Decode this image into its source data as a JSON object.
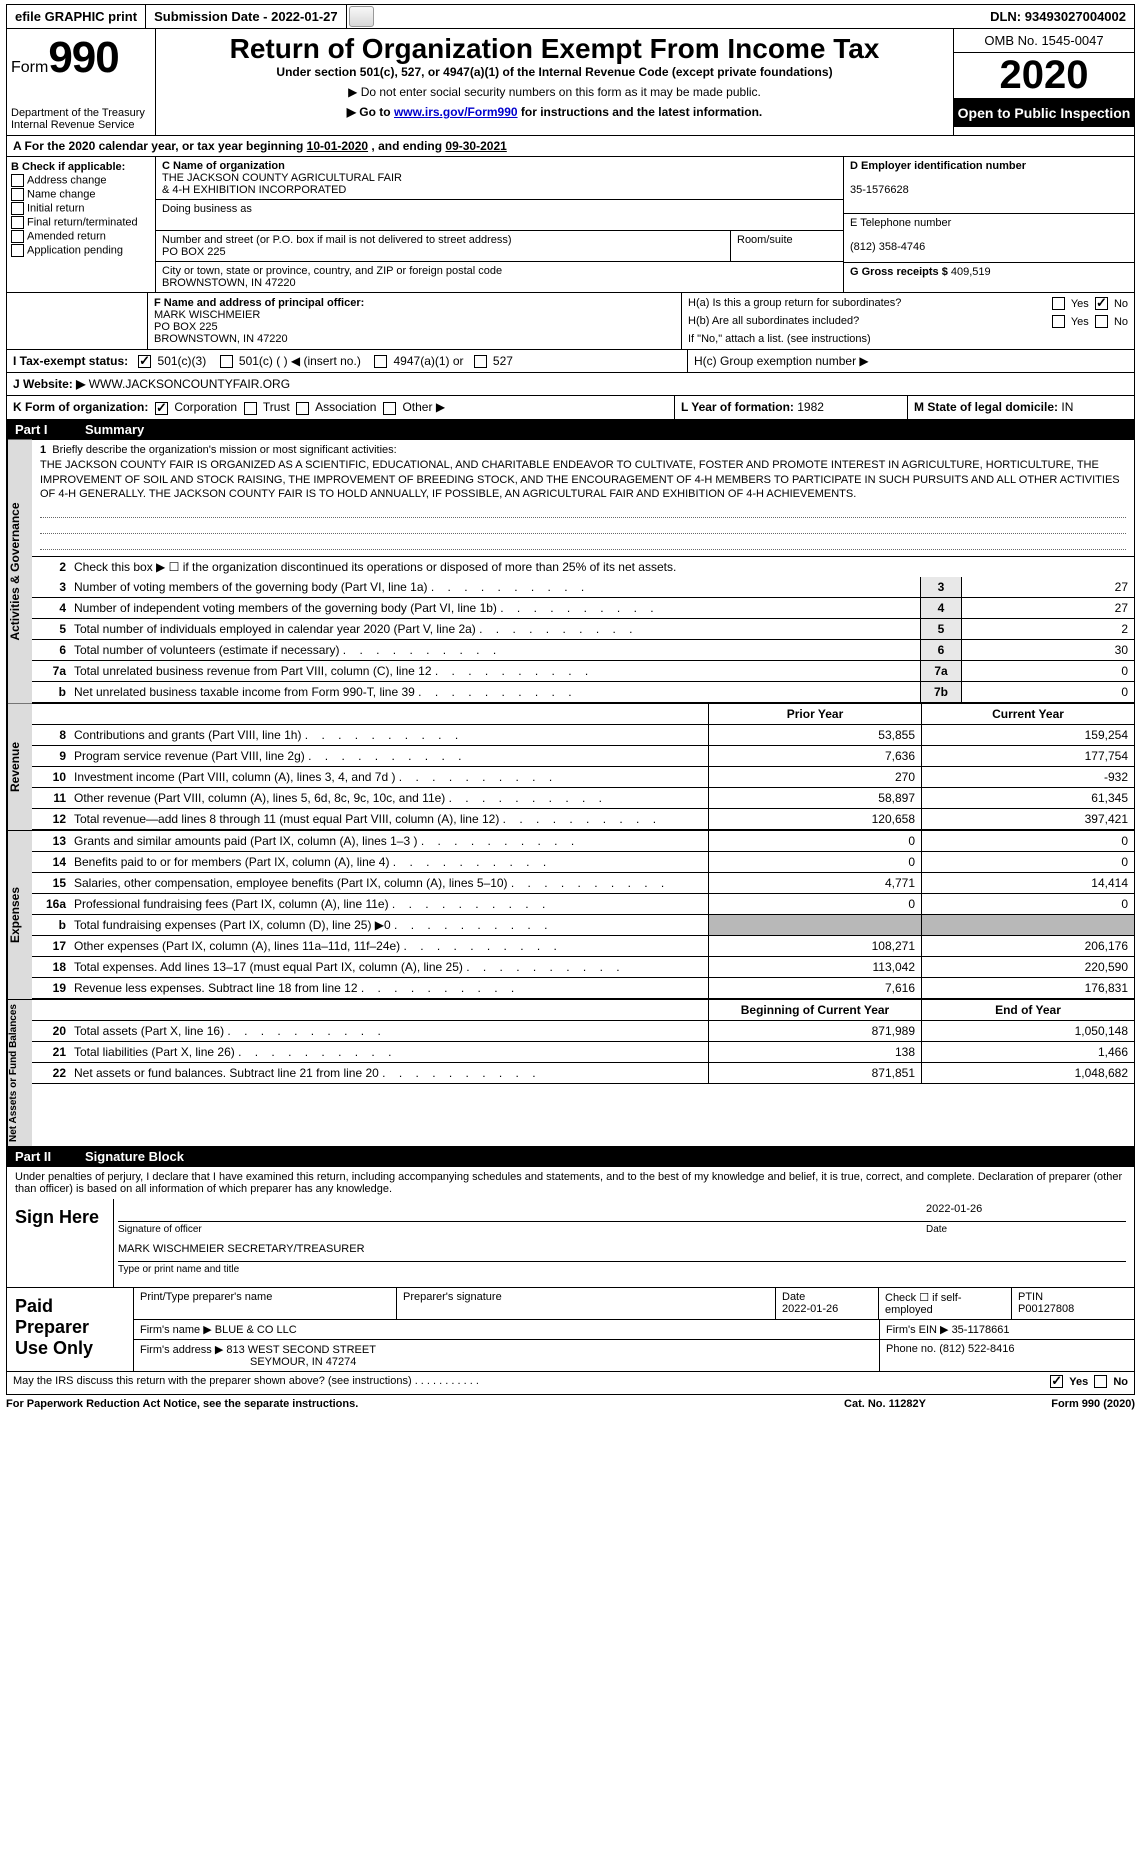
{
  "topbar": {
    "efile": "efile GRAPHIC print",
    "submission_label": "Submission Date - ",
    "submission_date": "2022-01-27",
    "dln_label": "DLN: ",
    "dln": "93493027004002"
  },
  "header": {
    "form_label": "Form",
    "form_no": "990",
    "dept": "Department of the Treasury\nInternal Revenue Service",
    "title": "Return of Organization Exempt From Income Tax",
    "subtitle": "Under section 501(c), 527, or 4947(a)(1) of the Internal Revenue Code (except private foundations)",
    "note1": "▶ Do not enter social security numbers on this form as it may be made public.",
    "note2_pre": "▶ Go to ",
    "note2_link": "www.irs.gov/Form990",
    "note2_post": " for instructions and the latest information.",
    "omb": "OMB No. 1545-0047",
    "year": "2020",
    "inspection": "Open to Public Inspection"
  },
  "sectionA": {
    "text_pre": "A For the 2020 calendar year, or tax year beginning ",
    "begin": "10-01-2020",
    "mid": " , and ending ",
    "end": "09-30-2021"
  },
  "colB": {
    "label": "B Check if applicable:",
    "items": [
      "Address change",
      "Name change",
      "Initial return",
      "Final return/terminated",
      "Amended return",
      "Application pending"
    ]
  },
  "colC": {
    "name_label": "C Name of organization",
    "name1": "THE JACKSON COUNTY AGRICULTURAL FAIR",
    "name2": "& 4-H EXHIBITION INCORPORATED",
    "dba_label": "Doing business as",
    "street_label": "Number and street (or P.O. box if mail is not delivered to street address)",
    "street": "PO BOX 225",
    "room_label": "Room/suite",
    "city_label": "City or town, state or province, country, and ZIP or foreign postal code",
    "city": "BROWNSTOWN, IN  47220"
  },
  "colD": {
    "label": "D Employer identification number",
    "ein": "35-1576628"
  },
  "colE": {
    "label": "E Telephone number",
    "phone": "(812) 358-4746"
  },
  "colG": {
    "label": "G Gross receipts $ ",
    "amount": "409,519"
  },
  "colF": {
    "label": "F Name and address of principal officer:",
    "name": "MARK WISCHMEIER",
    "street": "PO BOX 225",
    "city": "BROWNSTOWN, IN  47220"
  },
  "colH": {
    "a_label": "H(a)  Is this a group return for subordinates?",
    "b_label": "H(b)  Are all subordinates included?",
    "b_note": "If \"No,\" attach a list. (see instructions)",
    "c_label": "H(c)  Group exemption number ▶",
    "yes": "Yes",
    "no": "No"
  },
  "rowI": {
    "label": "I   Tax-exempt status:",
    "opt1": "501(c)(3)",
    "opt2": "501(c) (  ) ◀ (insert no.)",
    "opt3": "4947(a)(1) or",
    "opt4": "527"
  },
  "rowJ": {
    "label": "J   Website: ▶",
    "url": "WWW.JACKSONCOUNTYFAIR.ORG"
  },
  "rowK": {
    "label": "K Form of organization:",
    "opts": [
      "Corporation",
      "Trust",
      "Association",
      "Other ▶"
    ],
    "L_label": "L Year of formation: ",
    "L_val": "1982",
    "M_label": "M State of legal domicile: ",
    "M_val": "IN"
  },
  "part1": {
    "num": "Part I",
    "title": "Summary"
  },
  "governance": {
    "tab": "Activities & Governance",
    "q1_label": "Briefly describe the organization's mission or most significant activities:",
    "mission": "THE JACKSON COUNTY FAIR IS ORGANIZED AS A SCIENTIFIC, EDUCATIONAL, AND CHARITABLE ENDEAVOR TO CULTIVATE, FOSTER AND PROMOTE INTEREST IN AGRICULTURE, HORTICULTURE, THE IMPROVEMENT OF SOIL AND STOCK RAISING, THE IMPROVEMENT OF BREEDING STOCK, AND THE ENCOURAGEMENT OF 4-H MEMBERS TO PARTICIPATE IN SUCH PURSUITS AND ALL OTHER ACTIVITIES OF 4-H GENERALLY. THE JACKSON COUNTY FAIR IS TO HOLD ANNUALLY, IF POSSIBLE, AN AGRICULTURAL FAIR AND EXHIBITION OF 4-H ACHIEVEMENTS.",
    "q2": "Check this box ▶ ☐ if the organization discontinued its operations or disposed of more than 25% of its net assets.",
    "rows": [
      {
        "n": "3",
        "desc": "Number of voting members of the governing body (Part VI, line 1a)",
        "box": "3",
        "val": "27"
      },
      {
        "n": "4",
        "desc": "Number of independent voting members of the governing body (Part VI, line 1b)",
        "box": "4",
        "val": "27"
      },
      {
        "n": "5",
        "desc": "Total number of individuals employed in calendar year 2020 (Part V, line 2a)",
        "box": "5",
        "val": "2"
      },
      {
        "n": "6",
        "desc": "Total number of volunteers (estimate if necessary)",
        "box": "6",
        "val": "30"
      },
      {
        "n": "7a",
        "desc": "Total unrelated business revenue from Part VIII, column (C), line 12",
        "box": "7a",
        "val": "0"
      },
      {
        "n": "b",
        "desc": "Net unrelated business taxable income from Form 990-T, line 39",
        "box": "7b",
        "val": "0"
      }
    ]
  },
  "revenue": {
    "tab": "Revenue",
    "header": {
      "prior": "Prior Year",
      "current": "Current Year"
    },
    "rows": [
      {
        "n": "8",
        "desc": "Contributions and grants (Part VIII, line 1h)",
        "prior": "53,855",
        "cur": "159,254"
      },
      {
        "n": "9",
        "desc": "Program service revenue (Part VIII, line 2g)",
        "prior": "7,636",
        "cur": "177,754"
      },
      {
        "n": "10",
        "desc": "Investment income (Part VIII, column (A), lines 3, 4, and 7d )",
        "prior": "270",
        "cur": "-932"
      },
      {
        "n": "11",
        "desc": "Other revenue (Part VIII, column (A), lines 5, 6d, 8c, 9c, 10c, and 11e)",
        "prior": "58,897",
        "cur": "61,345"
      },
      {
        "n": "12",
        "desc": "Total revenue—add lines 8 through 11 (must equal Part VIII, column (A), line 12)",
        "prior": "120,658",
        "cur": "397,421"
      }
    ]
  },
  "expenses": {
    "tab": "Expenses",
    "rows": [
      {
        "n": "13",
        "desc": "Grants and similar amounts paid (Part IX, column (A), lines 1–3 )",
        "prior": "0",
        "cur": "0"
      },
      {
        "n": "14",
        "desc": "Benefits paid to or for members (Part IX, column (A), line 4)",
        "prior": "0",
        "cur": "0"
      },
      {
        "n": "15",
        "desc": "Salaries, other compensation, employee benefits (Part IX, column (A), lines 5–10)",
        "prior": "4,771",
        "cur": "14,414"
      },
      {
        "n": "16a",
        "desc": "Professional fundraising fees (Part IX, column (A), line 11e)",
        "prior": "0",
        "cur": "0"
      },
      {
        "n": "b",
        "desc": "Total fundraising expenses (Part IX, column (D), line 25) ▶0",
        "prior": "",
        "cur": "",
        "grey": true
      },
      {
        "n": "17",
        "desc": "Other expenses (Part IX, column (A), lines 11a–11d, 11f–24e)",
        "prior": "108,271",
        "cur": "206,176"
      },
      {
        "n": "18",
        "desc": "Total expenses. Add lines 13–17 (must equal Part IX, column (A), line 25)",
        "prior": "113,042",
        "cur": "220,590"
      },
      {
        "n": "19",
        "desc": "Revenue less expenses. Subtract line 18 from line 12",
        "prior": "7,616",
        "cur": "176,831"
      }
    ]
  },
  "netassets": {
    "tab": "Net Assets or Fund Balances",
    "header": {
      "prior": "Beginning of Current Year",
      "current": "End of Year"
    },
    "rows": [
      {
        "n": "20",
        "desc": "Total assets (Part X, line 16)",
        "prior": "871,989",
        "cur": "1,050,148"
      },
      {
        "n": "21",
        "desc": "Total liabilities (Part X, line 26)",
        "prior": "138",
        "cur": "1,466"
      },
      {
        "n": "22",
        "desc": "Net assets or fund balances. Subtract line 21 from line 20",
        "prior": "871,851",
        "cur": "1,048,682"
      }
    ]
  },
  "part2": {
    "num": "Part II",
    "title": "Signature Block"
  },
  "sig": {
    "perjury": "Under penalties of perjury, I declare that I have examined this return, including accompanying schedules and statements, and to the best of my knowledge and belief, it is true, correct, and complete. Declaration of preparer (other than officer) is based on all information of which preparer has any knowledge.",
    "sign_here": "Sign Here",
    "sig_officer": "Signature of officer",
    "date_label": "Date",
    "date": "2022-01-26",
    "name_title": "MARK WISCHMEIER SECRETARY/TREASURER",
    "name_under": "Type or print name and title"
  },
  "prep": {
    "label": "Paid Preparer Use Only",
    "h_name": "Print/Type preparer's name",
    "h_sig": "Preparer's signature",
    "h_date": "Date",
    "date": "2022-01-26",
    "check_label": "Check ☐ if self-employed",
    "ptin_label": "PTIN",
    "ptin": "P00127808",
    "firm_name_label": "Firm's name    ▶ ",
    "firm_name": "BLUE & CO LLC",
    "firm_ein_label": "Firm's EIN ▶ ",
    "firm_ein": "35-1178661",
    "firm_addr_label": "Firm's address ▶ ",
    "firm_addr1": "813 WEST SECOND STREET",
    "firm_addr2": "SEYMOUR, IN  47274",
    "phone_label": "Phone no. ",
    "phone": "(812) 522-8416"
  },
  "footer": {
    "discuss": "May the IRS discuss this return with the preparer shown above? (see instructions)",
    "yes": "Yes",
    "no": "No",
    "paperwork": "For Paperwork Reduction Act Notice, see the separate instructions.",
    "cat": "Cat. No. 11282Y",
    "form": "Form 990 (2020)"
  }
}
